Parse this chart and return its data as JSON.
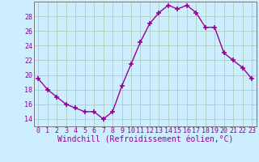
{
  "x": [
    0,
    1,
    2,
    3,
    4,
    5,
    6,
    7,
    8,
    9,
    10,
    11,
    12,
    13,
    14,
    15,
    16,
    17,
    18,
    19,
    20,
    21,
    22,
    23
  ],
  "y": [
    19.5,
    18.0,
    17.0,
    16.0,
    15.5,
    15.0,
    15.0,
    14.0,
    15.0,
    18.5,
    21.5,
    24.5,
    27.0,
    28.5,
    29.5,
    29.0,
    29.5,
    28.5,
    26.5,
    26.5,
    23.0,
    22.0,
    21.0,
    19.5
  ],
  "line_color": "#990099",
  "marker": "+",
  "markersize": 4,
  "markeredgewidth": 1.2,
  "linewidth": 1.0,
  "bg_color": "#cceeff",
  "grid_color": "#aaccbb",
  "xlabel": "Windchill (Refroidissement éolien,°C)",
  "xlabel_color": "#990099",
  "xlabel_fontsize": 7,
  "tick_color": "#990099",
  "tick_fontsize": 6,
  "ylim": [
    13.0,
    30.0
  ],
  "yticks": [
    14,
    16,
    18,
    20,
    22,
    24,
    26,
    28
  ],
  "xlim": [
    -0.5,
    23.5
  ]
}
